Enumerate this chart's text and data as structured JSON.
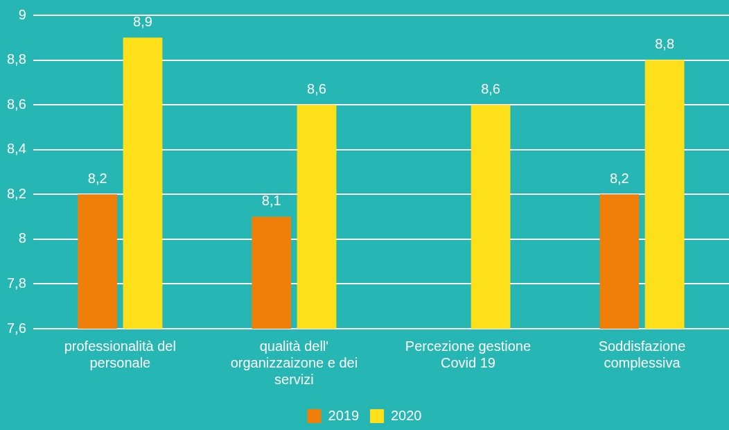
{
  "chart_data": {
    "type": "bar",
    "categories": [
      "professionalità del personale",
      "qualità dell' organizzaizone e dei servizi",
      "Percezione gestione Covid 19",
      "Soddisfazione complessiva"
    ],
    "series": [
      {
        "name": "2019",
        "color": "#f07f09",
        "values": [
          8.2,
          8.1,
          null,
          8.2
        ],
        "value_labels": [
          "8,2",
          "8,1",
          null,
          "8,2"
        ]
      },
      {
        "name": "2020",
        "color": "#fde01a",
        "values": [
          8.9,
          8.6,
          8.6,
          8.8
        ],
        "value_labels": [
          "8,9",
          "8,6",
          "8,6",
          "8,8"
        ]
      }
    ],
    "ylim": [
      7.6,
      9
    ],
    "yticks": [
      {
        "value": 7.6,
        "label": "7,6"
      },
      {
        "value": 7.8,
        "label": "7,8"
      },
      {
        "value": 8,
        "label": "8"
      },
      {
        "value": 8.2,
        "label": "8,2"
      },
      {
        "value": 8.4,
        "label": "8,4"
      },
      {
        "value": 8.6,
        "label": "8,6"
      },
      {
        "value": 8.8,
        "label": "8,8"
      },
      {
        "value": 9,
        "label": "9"
      }
    ],
    "grid": "y",
    "legend": "bottom"
  }
}
